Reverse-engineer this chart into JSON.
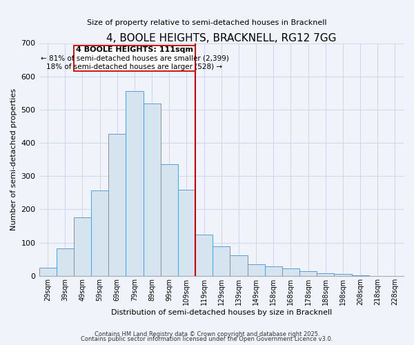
{
  "title": "4, BOOLE HEIGHTS, BRACKNELL, RG12 7GG",
  "subtitle": "Size of property relative to semi-detached houses in Bracknell",
  "xlabel": "Distribution of semi-detached houses by size in Bracknell",
  "ylabel": "Number of semi-detached properties",
  "bar_color": "#d6e4f0",
  "bar_edge_color": "#5b9bd5",
  "background_color": "#f0f4fa",
  "grid_color": "#d0d8e8",
  "annotation_box_color": "#ffffff",
  "annotation_box_edge": "#cc0000",
  "annotation_line_color": "#cc0000",
  "categories": [
    "29sqm",
    "39sqm",
    "49sqm",
    "59sqm",
    "69sqm",
    "79sqm",
    "89sqm",
    "99sqm",
    "109sqm",
    "119sqm",
    "129sqm",
    "139sqm",
    "149sqm",
    "158sqm",
    "168sqm",
    "178sqm",
    "188sqm",
    "198sqm",
    "208sqm",
    "218sqm",
    "228sqm"
  ],
  "values": [
    25,
    83,
    175,
    257,
    428,
    555,
    518,
    335,
    258,
    125,
    88,
    62,
    35,
    28,
    22,
    15,
    8,
    5,
    2,
    0,
    0
  ],
  "property_label": "4 BOOLE HEIGHTS: 111sqm",
  "pct_smaller": 81,
  "n_smaller": 2399,
  "pct_larger": 18,
  "n_larger": 528,
  "red_line_x": 8.5,
  "ylim": [
    0,
    700
  ],
  "yticks": [
    0,
    100,
    200,
    300,
    400,
    500,
    600,
    700
  ],
  "footer1": "Contains HM Land Registry data © Crown copyright and database right 2025.",
  "footer2": "Contains public sector information licensed under the Open Government Licence v3.0."
}
